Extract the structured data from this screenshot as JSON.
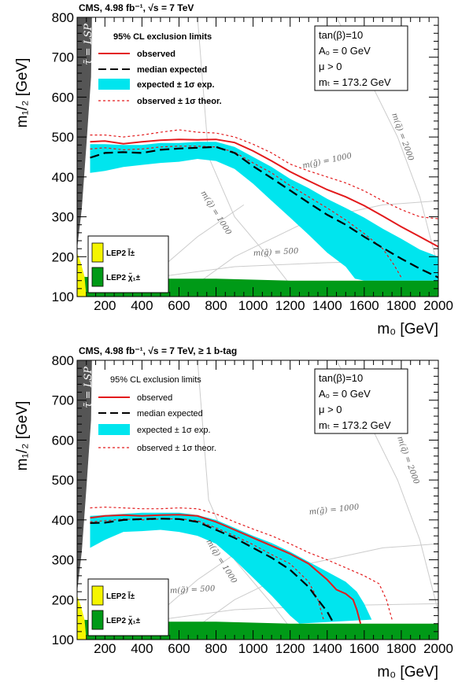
{
  "chart_data": [
    {
      "type": "line",
      "header": "CMS, 4.98 fb⁻¹, √s = 7 TeV",
      "xlabel": "m₀ [GeV]",
      "ylabel": "m₁/₂ [GeV]",
      "xlim": [
        50,
        2000
      ],
      "ylim": [
        100,
        800
      ],
      "xticks": [
        "200",
        "400",
        "600",
        "800",
        "1000",
        "1200",
        "1400",
        "1600",
        "1800",
        "2000"
      ],
      "yticks": [
        "100",
        "200",
        "300",
        "400",
        "500",
        "600",
        "700",
        "800"
      ],
      "legend": {
        "title": "95% CL exclusion limits",
        "observed": "observed",
        "median": "median expected",
        "band": "expected ± 1σ exp.",
        "theory": "observed ± 1σ theor."
      },
      "params": [
        "tan(β)=10",
        "A₀ = 0 GeV",
        "μ > 0",
        "mₜ = 173.2 GeV"
      ],
      "lsp_label": "τ̃ = LSP",
      "lep_labels": [
        "LEP2 l̃±",
        "LEP2 χ̃₁±"
      ],
      "iso_labels": [
        "m(q̃) = 2000",
        "m(g̃) = 1000",
        "m(q̃) = 1000",
        "m(g̃) = 500"
      ],
      "series": [
        {
          "name": "observed",
          "x": [
            120,
            200,
            300,
            400,
            500,
            600,
            700,
            800,
            900,
            1000,
            1100,
            1200,
            1300,
            1400,
            1500,
            1600,
            1700,
            1800,
            1900,
            2000
          ],
          "y": [
            488,
            490,
            483,
            488,
            492,
            494,
            493,
            494,
            486,
            465,
            440,
            413,
            390,
            368,
            350,
            328,
            302,
            275,
            250,
            225
          ]
        },
        {
          "name": "median expected",
          "x": [
            120,
            200,
            300,
            400,
            500,
            600,
            700,
            800,
            900,
            1000,
            1100,
            1200,
            1300,
            1400,
            1500,
            1600,
            1700,
            1800,
            1900,
            2000
          ],
          "y": [
            448,
            460,
            462,
            460,
            468,
            471,
            473,
            475,
            460,
            427,
            397,
            366,
            335,
            305,
            280,
            250,
            222,
            195,
            170,
            148
          ]
        },
        {
          "name": "observed - 1σ theor.",
          "x": [
            120,
            200,
            300,
            400,
            500,
            600,
            700,
            800,
            900,
            1000,
            1100,
            1200,
            1300,
            1400,
            1500,
            1600,
            1700,
            1760,
            1800
          ],
          "y": [
            470,
            473,
            468,
            470,
            475,
            477,
            477,
            475,
            462,
            435,
            410,
            378,
            350,
            322,
            292,
            258,
            220,
            180,
            148
          ]
        },
        {
          "name": "observed + 1σ theor.",
          "x": [
            120,
            200,
            300,
            400,
            500,
            600,
            700,
            800,
            900,
            1000,
            1100,
            1200,
            1300,
            1400,
            1500,
            1600,
            1700,
            1800,
            1900,
            2000
          ],
          "y": [
            505,
            505,
            500,
            505,
            512,
            518,
            512,
            510,
            500,
            482,
            460,
            432,
            415,
            400,
            385,
            365,
            340,
            318,
            300,
            295
          ]
        },
        {
          "name": "expected + 1σ exp.",
          "x": [
            120,
            200,
            300,
            400,
            500,
            600,
            700,
            800,
            900,
            1000,
            1100,
            1200,
            1300,
            1400,
            1500,
            1600,
            1700,
            1800,
            1900,
            2000
          ],
          "y": [
            482,
            482,
            480,
            480,
            485,
            485,
            488,
            488,
            475,
            450,
            425,
            395,
            372,
            345,
            322,
            298,
            270,
            245,
            218,
            200
          ]
        },
        {
          "name": "expected - 1σ exp.",
          "x": [
            120,
            200,
            300,
            400,
            500,
            600,
            700,
            800,
            900,
            1000,
            1100,
            1200,
            1300,
            1400,
            1500,
            1550,
            1600,
            1700,
            1800,
            1900,
            2000
          ],
          "y": [
            410,
            415,
            425,
            430,
            435,
            438,
            445,
            440,
            420,
            383,
            340,
            298,
            255,
            210,
            175,
            145,
            140,
            140,
            140,
            140,
            140
          ]
        }
      ]
    },
    {
      "type": "line",
      "header": "CMS, 4.98 fb⁻¹, √s = 7 TeV, ≥ 1 b-tag",
      "xlabel": "m₀ [GeV]",
      "ylabel": "m₁/₂ [GeV]",
      "xlim": [
        50,
        2000
      ],
      "ylim": [
        100,
        800
      ],
      "xticks": [
        "200",
        "400",
        "600",
        "800",
        "1000",
        "1200",
        "1400",
        "1600",
        "1800",
        "2000"
      ],
      "yticks": [
        "100",
        "200",
        "300",
        "400",
        "500",
        "600",
        "700",
        "800"
      ],
      "legend": {
        "title": "95% CL exclusion limits",
        "observed": "observed",
        "median": "median expected",
        "band": "expected ± 1σ exp.",
        "theory": "observed ± 1σ theor."
      },
      "params": [
        "tan(β)=10",
        "A₀ = 0 GeV",
        "μ > 0",
        "mₜ = 173.2 GeV"
      ],
      "lsp_label": "τ̃ = LSP",
      "lep_labels": [
        "LEP2 l̃±",
        "LEP2 χ̃₁±"
      ],
      "iso_labels": [
        "m(q̃) = 2000",
        "m(g̃) = 1000",
        "m(q̃) = 1000",
        "m(g̃) = 500"
      ],
      "series": [
        {
          "name": "observed",
          "x": [
            120,
            200,
            300,
            400,
            500,
            600,
            700,
            800,
            900,
            1000,
            1100,
            1200,
            1300,
            1400,
            1450,
            1500,
            1540,
            1560,
            1580
          ],
          "y": [
            405,
            410,
            412,
            410,
            412,
            413,
            410,
            395,
            375,
            355,
            335,
            315,
            290,
            250,
            225,
            215,
            200,
            175,
            140
          ]
        },
        {
          "name": "median expected",
          "x": [
            120,
            200,
            300,
            400,
            500,
            600,
            700,
            800,
            900,
            1000,
            1100,
            1200,
            1300,
            1350,
            1400,
            1430
          ],
          "y": [
            392,
            393,
            400,
            402,
            403,
            402,
            395,
            375,
            355,
            330,
            305,
            275,
            232,
            200,
            170,
            145
          ]
        },
        {
          "name": "observed - 1σ theor.",
          "x": [
            120,
            200,
            300,
            400,
            500,
            600,
            700,
            800,
            900,
            1000,
            1100,
            1200,
            1300,
            1350,
            1380
          ],
          "y": [
            395,
            398,
            402,
            400,
            402,
            403,
            398,
            380,
            360,
            338,
            313,
            290,
            245,
            200,
            150
          ]
        },
        {
          "name": "observed + 1σ theor.",
          "x": [
            120,
            200,
            300,
            400,
            500,
            600,
            700,
            800,
            900,
            1000,
            1100,
            1200,
            1300,
            1400,
            1500,
            1600,
            1680,
            1720,
            1750
          ],
          "y": [
            430,
            432,
            430,
            428,
            428,
            430,
            428,
            415,
            395,
            377,
            360,
            340,
            318,
            300,
            280,
            260,
            240,
            200,
            150
          ]
        },
        {
          "name": "expected + 1σ exp.",
          "x": [
            120,
            200,
            300,
            400,
            500,
            600,
            700,
            800,
            900,
            1000,
            1100,
            1200,
            1300,
            1400,
            1500,
            1560,
            1600,
            1640
          ],
          "y": [
            410,
            412,
            415,
            418,
            418,
            418,
            412,
            400,
            380,
            360,
            342,
            320,
            295,
            270,
            245,
            220,
            190,
            150
          ]
        },
        {
          "name": "expected - 1σ exp.",
          "x": [
            120,
            200,
            300,
            400,
            500,
            600,
            700,
            800,
            900,
            1000,
            1100,
            1200,
            1250
          ],
          "y": [
            330,
            350,
            370,
            372,
            375,
            370,
            360,
            340,
            300,
            255,
            210,
            160,
            140
          ]
        }
      ]
    }
  ],
  "colors": {
    "observed": "#e31a1c",
    "median": "#000000",
    "band": "#00e5ee",
    "theory": "#e31a1c",
    "lep_chargino": "#009a17",
    "lep_slepton": "#f5f500",
    "lsp": "#555555",
    "iso": "#cccccc"
  }
}
